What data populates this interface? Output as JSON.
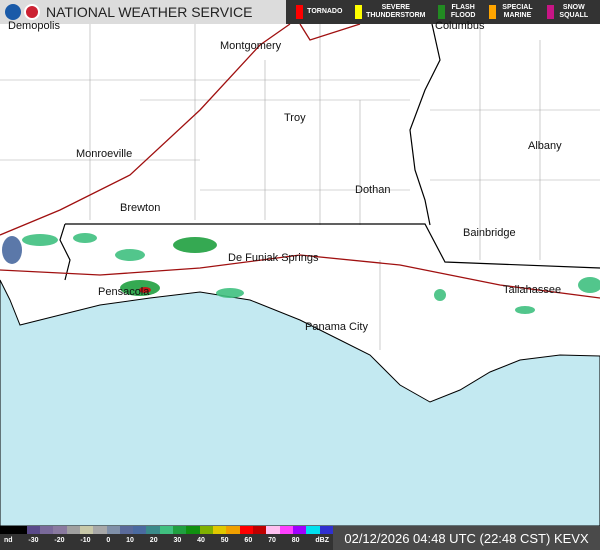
{
  "header": {
    "title": "NATIONAL WEATHER SERVICE",
    "logos": [
      "noaa-logo",
      "nws-logo"
    ]
  },
  "warnings_legend": [
    {
      "label": "TORNADO",
      "color": "#ff0000"
    },
    {
      "label": "SEVERE THUNDERSTORM",
      "color": "#ffff00"
    },
    {
      "label": "FLASH FLOOD",
      "color": "#228b22"
    },
    {
      "label": "SPECIAL MARINE",
      "color": "#ffa500"
    },
    {
      "label": "SNOW SQUALL",
      "color": "#c71585"
    }
  ],
  "cities": [
    "Demopolis",
    "Montgomery",
    "Columbus",
    "Troy",
    "Albany",
    "Monroeville",
    "Dothan",
    "Brewton",
    "Bainbridge",
    "De Funiak Springs",
    "Pensacola",
    "Tallahassee",
    "Panama City"
  ],
  "scale": {
    "ticks": [
      "nd",
      "-30",
      "-20",
      "-10",
      "0",
      "10",
      "20",
      "30",
      "40",
      "50",
      "60",
      "70",
      "80",
      "dBZ"
    ],
    "colors": [
      "#000",
      "#000",
      "#5a4a8a",
      "#7a6a9a",
      "#8a7aa0",
      "#a0a0a0",
      "#c8c8a8",
      "#a8a8a8",
      "#8090a8",
      "#5a6a9a",
      "#4a6aa0",
      "#3a8a8a",
      "#40c080",
      "#20a040",
      "#109010",
      "#80b000",
      "#e0c800",
      "#f0a000",
      "#ff0000",
      "#c00000",
      "#ffc0f0",
      "#ff40ff",
      "#a000ff",
      "#00e0f0",
      "#3030d0"
    ]
  },
  "timestamp": "02/12/2026 04:48 UTC (22:48 CST)",
  "station": "KEVX",
  "colors": {
    "water": "#c3e9f1",
    "land": "#ffffff",
    "highway": "#a01010",
    "border": "#000000"
  }
}
